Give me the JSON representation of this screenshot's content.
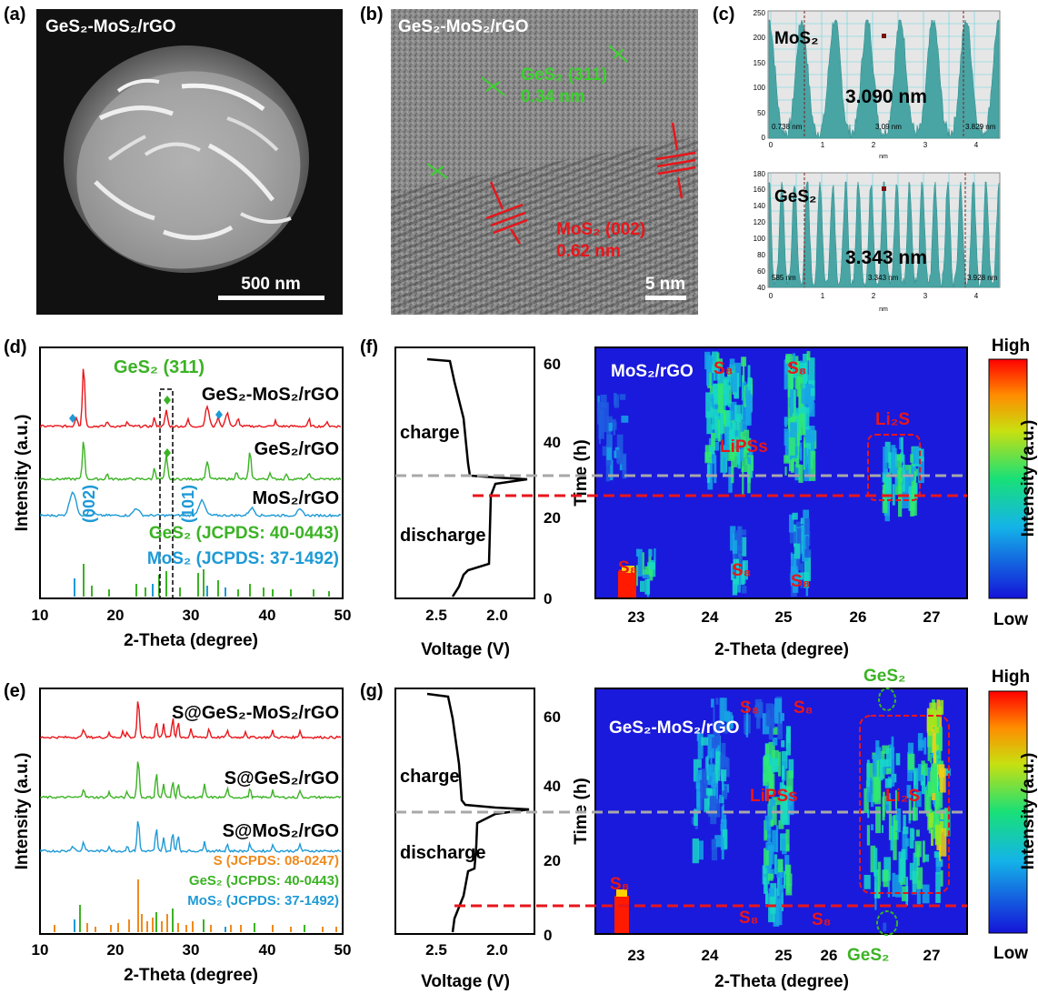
{
  "panel_labels": [
    "(a)",
    "(b)",
    "(c)",
    "(d)",
    "(e)",
    "(f)",
    "(g)"
  ],
  "panel_a": {
    "caption": "GeS₂-MoS₂/rGO",
    "scale_bar": "500 nm"
  },
  "panel_b": {
    "caption": "GeS₂-MoS₂/rGO",
    "gep_label": "GeS₂ (311)",
    "gep_d": "0.34 nm",
    "mos_label": "MoS₂ (002)",
    "mos_d": "0.62 nm",
    "scale_bar": "5 nm"
  },
  "panel_c": {
    "top": {
      "sample": "MoS₂",
      "value": "3.090 nm",
      "marks": [
        "0.738 nm",
        "3.09 nm",
        "3.829 nm"
      ],
      "unit": "nm",
      "yticks": [
        "0",
        "50",
        "100",
        "150",
        "200",
        "250"
      ],
      "xticks": [
        "0",
        "1",
        "2",
        "3",
        "4"
      ]
    },
    "bottom": {
      "sample": "GeS₂",
      "value": "3.343 nm",
      "marks": [
        "585 nm",
        "3.343 nm",
        "3.928 nm"
      ],
      "unit": "nm",
      "yticks": [
        "40",
        "60",
        "80",
        "100",
        "120",
        "140",
        "160",
        "180"
      ],
      "xticks": [
        "0",
        "1",
        "2",
        "3",
        "4"
      ]
    }
  },
  "panel_d": {
    "ylabel": "Intensity (a.u.)",
    "xlabel": "2-Theta (degree)",
    "xticks": [
      "10",
      "20",
      "30",
      "40",
      "50"
    ],
    "series": [
      "GeS₂-MoS₂/rGO",
      "GeS₂/rGO",
      "MoS₂/rGO"
    ],
    "annotation": "GeS₂ (311)",
    "peak_labels": [
      "(002)",
      "(101)"
    ],
    "refs": [
      "GeS₂ (JCPDS: 40-0443)",
      "MoS₂ (JCPDS: 37-1492)"
    ],
    "colors": {
      "red": "#e8161b",
      "green": "#3bb324",
      "blue": "#1e9ad6"
    }
  },
  "panel_e": {
    "ylabel": "Intensity (a.u.)",
    "xlabel": "2-Theta (degree)",
    "xticks": [
      "10",
      "20",
      "30",
      "40",
      "50"
    ],
    "series": [
      "S@GeS₂-MoS₂/rGO",
      "S@GeS₂/rGO",
      "S@MoS₂/rGO"
    ],
    "refs": [
      "S (JCPDS: 08-0247)",
      "GeS₂ (JCPDS: 40-0443)",
      "MoS₂ (JCPDS: 37-1492)"
    ],
    "ref_colors": [
      "#f08a1c",
      "#3bb324",
      "#1e9ad6"
    ]
  },
  "panel_f": {
    "voltage_label": "Voltage (V)",
    "vticks": [
      "2.5",
      "2.0"
    ],
    "time_label": "Time (h)",
    "tticks": [
      "0",
      "20",
      "40",
      "60"
    ],
    "charge": "charge",
    "discharge": "discharge",
    "map_title": "MoS₂/rGO",
    "theta_label": "2-Theta (degree)",
    "thticks": [
      "23",
      "24",
      "25",
      "26",
      "27"
    ],
    "tags": [
      "S₈",
      "S₈",
      "S₈",
      "S₈",
      "S₈",
      "LiPSs",
      "Li₂S"
    ]
  },
  "panel_g": {
    "voltage_label": "Voltage (V)",
    "vticks": [
      "2.5",
      "2.0"
    ],
    "time_label": "Time (h)",
    "tticks": [
      "0",
      "20",
      "40",
      "60"
    ],
    "charge": "charge",
    "discharge": "discharge",
    "map_title": "GeS₂-MoS₂/rGO",
    "theta_label": "2-Theta (degree)",
    "thticks": [
      "23",
      "24",
      "25",
      "26",
      "27"
    ],
    "tags": [
      "S₈",
      "S₈",
      "S₈",
      "S₈",
      "S₈",
      "LiPSs",
      "Li₂S",
      "GeS₂",
      "GeS₂"
    ]
  },
  "colorbar": {
    "high": "High",
    "low": "Low",
    "label": "Intensity (a.u.)"
  }
}
